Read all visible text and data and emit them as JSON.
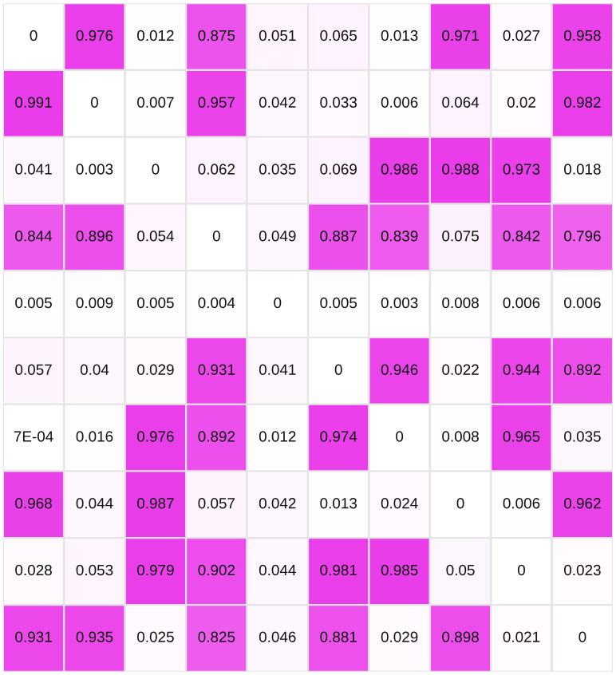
{
  "chart_data": {
    "type": "heatmap",
    "categories": [
      null,
      null,
      null,
      null,
      null,
      null,
      null,
      null,
      null,
      null
    ],
    "y_categories": [
      null,
      null,
      null,
      null,
      null,
      null,
      null,
      null,
      null,
      null
    ],
    "cells": [
      [
        0,
        0.976,
        0.012,
        0.875,
        0.051,
        0.065,
        0.013,
        0.971,
        0.027,
        0.958
      ],
      [
        0.991,
        0,
        0.007,
        0.957,
        0.042,
        0.033,
        0.006,
        0.064,
        0.02,
        0.982
      ],
      [
        0.041,
        0.003,
        0,
        0.062,
        0.035,
        0.069,
        0.986,
        0.988,
        0.973,
        0.018
      ],
      [
        0.844,
        0.896,
        0.054,
        0,
        0.049,
        0.887,
        0.839,
        0.075,
        0.842,
        0.796
      ],
      [
        0.005,
        0.009,
        0.005,
        0.004,
        0,
        0.005,
        0.003,
        0.008,
        0.006,
        0.006
      ],
      [
        0.057,
        0.04,
        0.029,
        0.931,
        0.041,
        0,
        0.946,
        0.022,
        0.944,
        0.892
      ],
      [
        0.0007,
        0.016,
        0.976,
        0.892,
        0.012,
        0.974,
        0,
        0.008,
        0.965,
        0.035
      ],
      [
        0.968,
        0.044,
        0.987,
        0.057,
        0.042,
        0.013,
        0.024,
        0,
        0.006,
        0.962
      ],
      [
        0.028,
        0.053,
        0.979,
        0.902,
        0.044,
        0.981,
        0.985,
        0.05,
        0,
        0.023
      ],
      [
        0.931,
        0.935,
        0.025,
        0.825,
        0.046,
        0.881,
        0.029,
        0.898,
        0.021,
        0
      ]
    ],
    "cell_labels": [
      [
        "0",
        "0.976",
        "0.012",
        "0.875",
        "0.051",
        "0.065",
        "0.013",
        "0.971",
        "0.027",
        "0.958"
      ],
      [
        "0.991",
        "0",
        "0.007",
        "0.957",
        "0.042",
        "0.033",
        "0.006",
        "0.064",
        "0.02",
        "0.982"
      ],
      [
        "0.041",
        "0.003",
        "0",
        "0.062",
        "0.035",
        "0.069",
        "0.986",
        "0.988",
        "0.973",
        "0.018"
      ],
      [
        "0.844",
        "0.896",
        "0.054",
        "0",
        "0.049",
        "0.887",
        "0.839",
        "0.075",
        "0.842",
        "0.796"
      ],
      [
        "0.005",
        "0.009",
        "0.005",
        "0.004",
        "0",
        "0.005",
        "0.003",
        "0.008",
        "0.006",
        "0.006"
      ],
      [
        "0.057",
        "0.04",
        "0.029",
        "0.931",
        "0.041",
        "0",
        "0.946",
        "0.022",
        "0.944",
        "0.892"
      ],
      [
        "7E-04",
        "0.016",
        "0.976",
        "0.892",
        "0.012",
        "0.974",
        "0",
        "0.008",
        "0.965",
        "0.035"
      ],
      [
        "0.968",
        "0.044",
        "0.987",
        "0.057",
        "0.042",
        "0.013",
        "0.024",
        "0",
        "0.006",
        "0.962"
      ],
      [
        "0.028",
        "0.053",
        "0.979",
        "0.902",
        "0.044",
        "0.981",
        "0.985",
        "0.05",
        "0",
        "0.023"
      ],
      [
        "0.931",
        "0.935",
        "0.025",
        "0.825",
        "0.046",
        "0.881",
        "0.029",
        "0.898",
        "0.021",
        "0"
      ]
    ]
  }
}
